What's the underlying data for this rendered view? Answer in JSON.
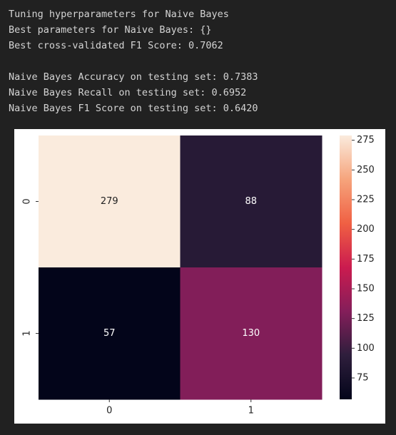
{
  "output_lines": [
    "Tuning hyperparameters for Naive Bayes",
    "Best parameters for Naive Bayes: {}",
    "Best cross-validated F1 Score: 0.7062",
    "",
    "Naive Bayes Accuracy on testing set: 0.7383",
    "Naive Bayes Recall on testing set: 0.6952",
    "Naive Bayes F1 Score on testing set: 0.6420"
  ],
  "chart_data": {
    "type": "heatmap",
    "x_categories": [
      "0",
      "1"
    ],
    "y_categories": [
      "0",
      "1"
    ],
    "values": [
      [
        279,
        88
      ],
      [
        57,
        130
      ]
    ],
    "clim": [
      57,
      279
    ],
    "cticks": [
      75,
      100,
      125,
      150,
      175,
      200,
      225,
      250,
      275
    ],
    "colormap": [
      "#03051a",
      "#2e1e3c",
      "#841e5a",
      "#cb1b4f",
      "#f06043",
      "#f6a47c",
      "#faebdd"
    ]
  }
}
